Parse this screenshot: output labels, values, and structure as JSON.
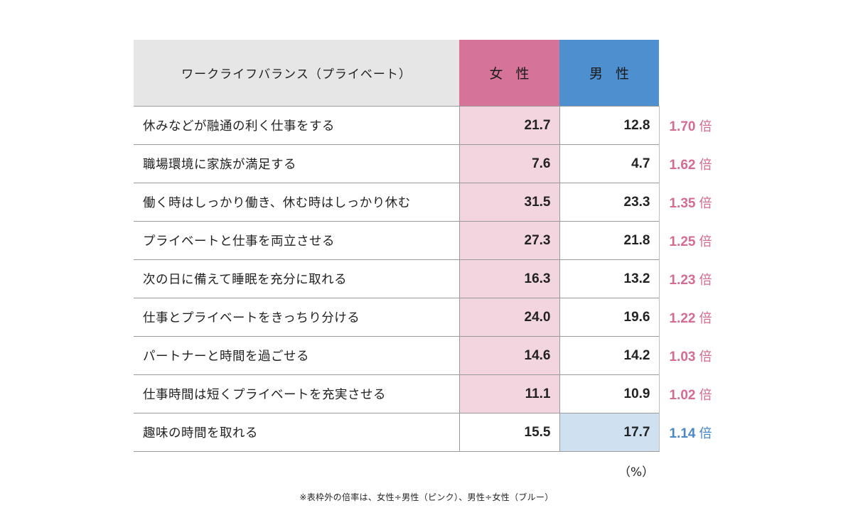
{
  "table": {
    "header_label": "ワークライフバランス（プライベート）",
    "header_female": "女性",
    "header_male": "男性"
  },
  "colors": {
    "female_header": "#d57398",
    "male_header": "#4d8fcf",
    "female_highlight": "#f2d5df",
    "male_highlight": "#cfe0f1",
    "female_ratio": "#d46b93",
    "male_ratio": "#4a87c6",
    "label_header_bg": "#e6e6e6"
  },
  "chart_data": {
    "type": "table",
    "columns": [
      "ワークライフバランス（プライベート）",
      "女性",
      "男性"
    ],
    "ratio_unit": "倍",
    "rows": [
      {
        "label": "休みなどが融通の利く仕事をする",
        "female": "21.7",
        "male": "12.8",
        "ratio": "1.70",
        "higher": "female"
      },
      {
        "label": "職場環境に家族が満足する",
        "female": "7.6",
        "male": "4.7",
        "ratio": "1.62",
        "higher": "female"
      },
      {
        "label": "働く時はしっかり働き、休む時はしっかり休む",
        "female": "31.5",
        "male": "23.3",
        "ratio": "1.35",
        "higher": "female"
      },
      {
        "label": "プライベートと仕事を両立させる",
        "female": "27.3",
        "male": "21.8",
        "ratio": "1.25",
        "higher": "female"
      },
      {
        "label": "次の日に備えて睡眠を充分に取れる",
        "female": "16.3",
        "male": "13.2",
        "ratio": "1.23",
        "higher": "female"
      },
      {
        "label": "仕事とプライベートをきっちり分ける",
        "female": "24.0",
        "male": "19.6",
        "ratio": "1.22",
        "higher": "female"
      },
      {
        "label": "パートナーと時間を過ごせる",
        "female": "14.6",
        "male": "14.2",
        "ratio": "1.03",
        "higher": "female"
      },
      {
        "label": "仕事時間は短くプライベートを充実させる",
        "female": "11.1",
        "male": "10.9",
        "ratio": "1.02",
        "higher": "female"
      },
      {
        "label": "趣味の時間を取れる",
        "female": "15.5",
        "male": "17.7",
        "ratio": "1.14",
        "higher": "male"
      }
    ]
  },
  "unit_note": "（%）",
  "footnote": "※表枠外の倍率は、女性÷男性（ピンク）、男性÷女性（ブルー）"
}
